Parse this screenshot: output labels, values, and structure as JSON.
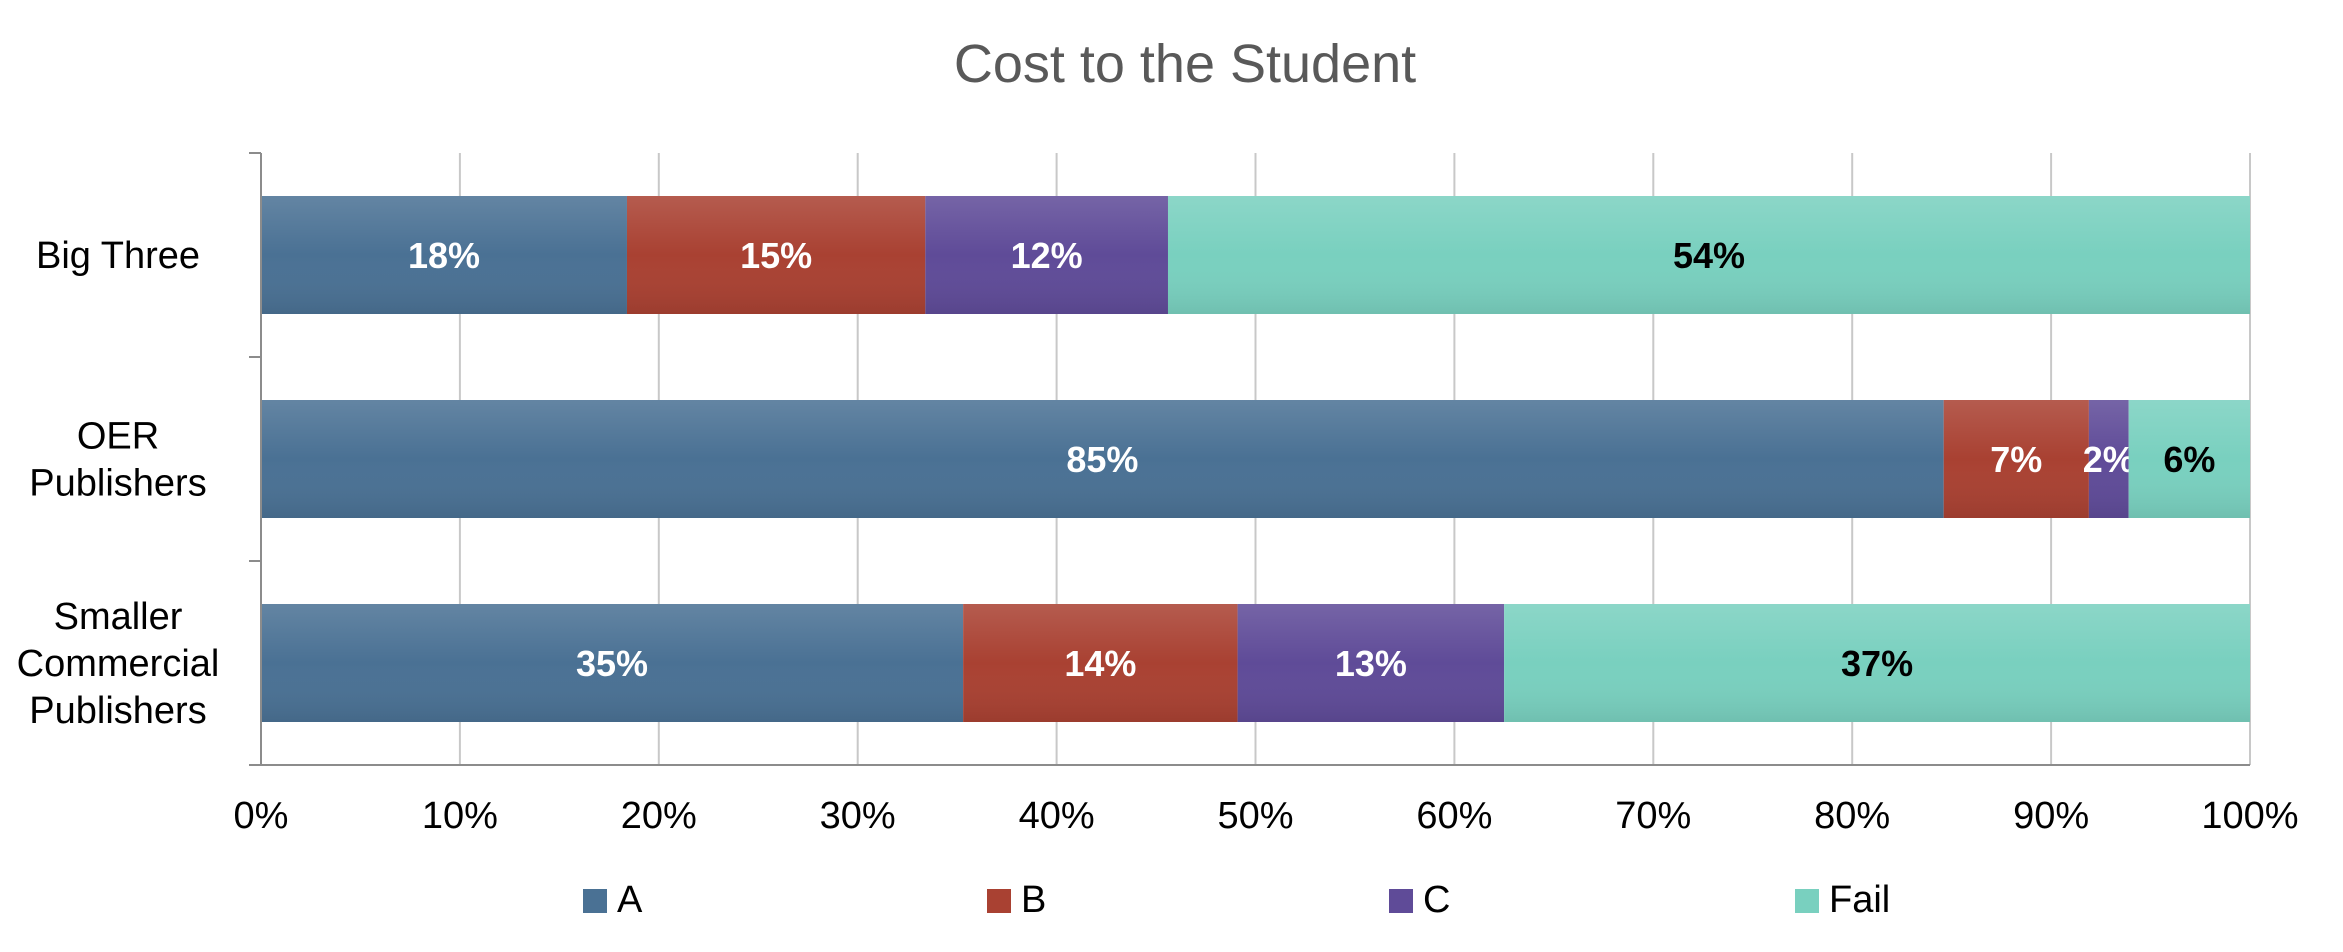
{
  "chart_data": {
    "type": "bar",
    "orientation": "horizontal",
    "stacked": true,
    "percent_stacked": true,
    "title": "Cost to the Student",
    "categories": [
      "Big Three",
      "OER Publishers",
      "Smaller Commercial Publishers"
    ],
    "category_label_lines": [
      [
        "Big Three"
      ],
      [
        "OER",
        "Publishers"
      ],
      [
        "Smaller",
        "Commercial",
        "Publishers"
      ]
    ],
    "series": [
      {
        "name": "A",
        "color": "#4a7194",
        "values": [
          18.4,
          84.6,
          35.3
        ],
        "labels": [
          "18%",
          "85%",
          "35%"
        ],
        "label_color": "#ffffff"
      },
      {
        "name": "B",
        "color": "#a94132",
        "values": [
          15.0,
          7.3,
          13.8
        ],
        "labels": [
          "15%",
          "7%",
          "14%"
        ],
        "label_color": "#ffffff"
      },
      {
        "name": "C",
        "color": "#5f4b98",
        "values": [
          12.2,
          2.0,
          13.4
        ],
        "labels": [
          "12%",
          "2%",
          "13%"
        ],
        "label_color": "#ffffff"
      },
      {
        "name": "Fail",
        "color": "#79d0bf",
        "values": [
          54.4,
          6.1,
          37.5
        ],
        "labels": [
          "54%",
          "6%",
          "37%"
        ],
        "label_color": "#000000"
      }
    ],
    "xlim": [
      0,
      100
    ],
    "x_ticks": [
      0,
      10,
      20,
      30,
      40,
      50,
      60,
      70,
      80,
      90,
      100
    ],
    "x_tick_labels": [
      "0%",
      "10%",
      "20%",
      "30%",
      "40%",
      "50%",
      "60%",
      "70%",
      "80%",
      "90%",
      "100%"
    ],
    "grid": true,
    "legend_position": "bottom"
  }
}
